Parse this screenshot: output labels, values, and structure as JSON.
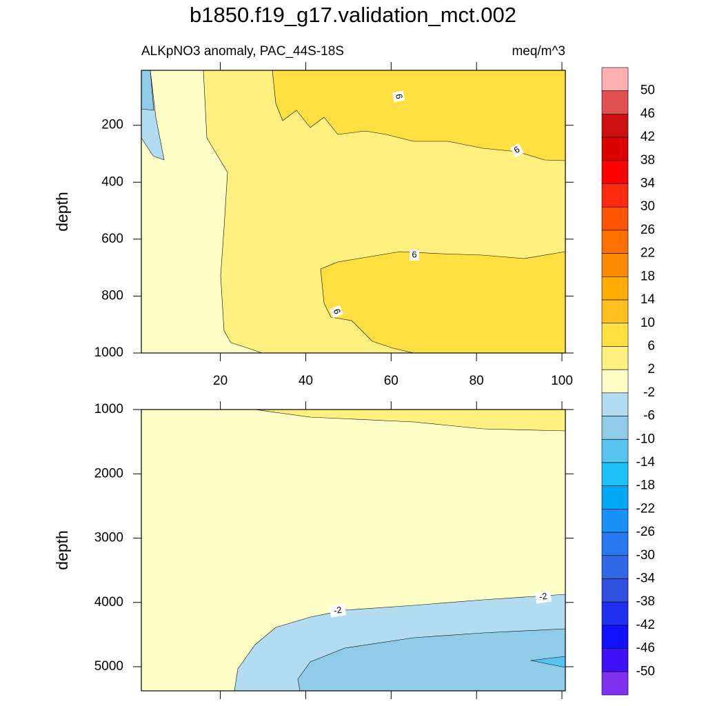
{
  "title": "b1850.f19_g17.validation_mct.002",
  "chart_data": [
    {
      "type": "contour",
      "subtitle": "ALKpNO3 anomaly, PAC_44S-18S",
      "units": "meq/m^3",
      "ylabel": "depth",
      "xlim": [
        1.5,
        100.8
      ],
      "xticks": [
        20,
        40,
        60,
        80,
        100
      ],
      "xtick_labels_shown": true,
      "ylim": [
        7,
        1000
      ],
      "yticks": [
        200,
        400,
        600,
        800,
        1000
      ],
      "y_inverted": true,
      "contour_labels": [
        6,
        6,
        6,
        6
      ]
    },
    {
      "type": "contour",
      "ylabel": "depth",
      "xlim": [
        1.5,
        100.8
      ],
      "xticks": [
        20,
        40,
        60,
        80,
        100
      ],
      "xtick_labels_shown": false,
      "ylim": [
        1000,
        5375
      ],
      "yticks": [
        1000,
        2000,
        3000,
        4000,
        5000
      ],
      "y_inverted": true,
      "contour_labels": [
        -2,
        -2
      ]
    }
  ],
  "colorbar": {
    "levels": [
      50,
      46,
      42,
      38,
      34,
      30,
      26,
      22,
      18,
      14,
      10,
      6,
      2,
      -2,
      -6,
      -10,
      -14,
      -18,
      -22,
      -26,
      -30,
      -34,
      -38,
      -42,
      -46,
      -50
    ],
    "colors": [
      "#ffb0b0",
      "#e05050",
      "#cc1010",
      "#dd0000",
      "#ff0000",
      "#ff2a10",
      "#ff5500",
      "#ff7000",
      "#ff8c00",
      "#ffaa00",
      "#ffc020",
      "#ffe040",
      "#fff080",
      "#ffffc8",
      "#b4dcf0",
      "#90cce8",
      "#58c4f0",
      "#20c0f8",
      "#00a8f8",
      "#1890f8",
      "#2878f0",
      "#3068e8",
      "#3050e0",
      "#2030f0",
      "#1010ff",
      "#4010f8",
      "#8030f0"
    ]
  }
}
